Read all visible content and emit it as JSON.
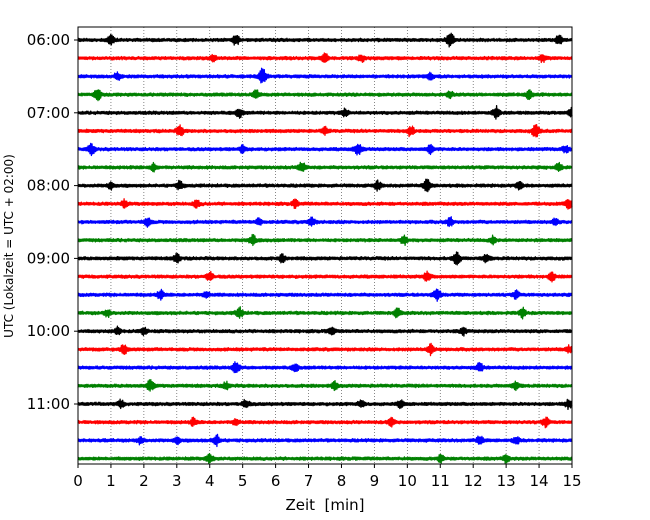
{
  "chart_data": {
    "type": "line",
    "subtype": "helicorder",
    "xlabel": "Zeit  [min]",
    "ylabel": "UTC (Lokalzeit = UTC + 02:00)",
    "xlim": [
      0,
      15
    ],
    "x_ticks": [
      0,
      1,
      2,
      3,
      4,
      5,
      6,
      7,
      8,
      9,
      10,
      11,
      12,
      13,
      14,
      15
    ],
    "x_tick_labels": [
      "0",
      "1",
      "2",
      "3",
      "4",
      "5",
      "6",
      "7",
      "8",
      "9",
      "10",
      "11",
      "12",
      "13",
      "14",
      "15"
    ],
    "grid": "vertical dotted lines at each minute",
    "trace_interval_minutes": 15,
    "num_traces": 24,
    "y_tick_labels": [
      {
        "trace_index": 0,
        "label": "06:00"
      },
      {
        "trace_index": 4,
        "label": "07:00"
      },
      {
        "trace_index": 8,
        "label": "08:00"
      },
      {
        "trace_index": 12,
        "label": "09:00"
      },
      {
        "trace_index": 16,
        "label": "10:00"
      },
      {
        "trace_index": 20,
        "label": "11:00"
      }
    ],
    "color_cycle": [
      "#000000",
      "#ff0000",
      "#0000ff",
      "#008000"
    ],
    "events": [
      [
        [
          1.0,
          0.6
        ],
        [
          4.8,
          0.7
        ],
        [
          11.3,
          0.9
        ],
        [
          14.6,
          0.6
        ]
      ],
      [
        [
          4.1,
          0.5
        ],
        [
          7.5,
          0.6
        ],
        [
          8.6,
          0.5
        ],
        [
          14.1,
          0.5
        ]
      ],
      [
        [
          1.2,
          0.5
        ],
        [
          5.6,
          1.0
        ],
        [
          10.7,
          0.5
        ]
      ],
      [
        [
          0.6,
          0.7
        ],
        [
          5.4,
          0.6
        ],
        [
          11.3,
          0.5
        ],
        [
          13.7,
          0.6
        ]
      ],
      [
        [
          4.9,
          0.6
        ],
        [
          8.1,
          0.5
        ],
        [
          12.7,
          0.8
        ],
        [
          15.0,
          0.7
        ]
      ],
      [
        [
          3.1,
          0.7
        ],
        [
          7.5,
          0.5
        ],
        [
          10.1,
          0.7
        ],
        [
          13.9,
          0.8
        ]
      ],
      [
        [
          0.4,
          0.7
        ],
        [
          5.0,
          0.5
        ],
        [
          8.5,
          0.8
        ],
        [
          10.7,
          0.6
        ],
        [
          14.8,
          0.5
        ]
      ],
      [
        [
          2.3,
          0.5
        ],
        [
          6.8,
          0.7
        ],
        [
          14.6,
          0.5
        ]
      ],
      [
        [
          1.0,
          0.5
        ],
        [
          3.1,
          0.6
        ],
        [
          9.1,
          0.6
        ],
        [
          10.6,
          0.8
        ],
        [
          13.4,
          0.6
        ]
      ],
      [
        [
          1.4,
          0.5
        ],
        [
          3.6,
          0.5
        ],
        [
          6.6,
          0.5
        ],
        [
          14.9,
          0.6
        ]
      ],
      [
        [
          2.1,
          0.6
        ],
        [
          5.5,
          0.5
        ],
        [
          7.1,
          0.6
        ],
        [
          11.3,
          0.6
        ],
        [
          14.5,
          0.5
        ]
      ],
      [
        [
          5.3,
          0.7
        ],
        [
          9.9,
          0.6
        ],
        [
          12.6,
          0.5
        ]
      ],
      [
        [
          3.0,
          0.6
        ],
        [
          6.2,
          0.5
        ],
        [
          11.5,
          0.8
        ],
        [
          12.4,
          0.6
        ]
      ],
      [
        [
          4.0,
          0.6
        ],
        [
          10.6,
          0.6
        ],
        [
          14.4,
          0.6
        ]
      ],
      [
        [
          2.5,
          0.6
        ],
        [
          3.9,
          0.5
        ],
        [
          10.9,
          0.8
        ],
        [
          13.3,
          0.5
        ]
      ],
      [
        [
          0.9,
          0.5
        ],
        [
          4.9,
          0.7
        ],
        [
          9.7,
          0.6
        ],
        [
          13.5,
          0.6
        ]
      ],
      [
        [
          1.2,
          0.5
        ],
        [
          2.0,
          0.5
        ],
        [
          7.7,
          0.5
        ],
        [
          11.7,
          0.5
        ]
      ],
      [
        [
          1.4,
          0.7
        ],
        [
          10.7,
          0.7
        ],
        [
          14.9,
          0.5
        ]
      ],
      [
        [
          4.8,
          0.7
        ],
        [
          6.6,
          0.5
        ],
        [
          12.2,
          0.6
        ]
      ],
      [
        [
          2.2,
          0.7
        ],
        [
          4.5,
          0.5
        ],
        [
          7.8,
          0.5
        ],
        [
          13.3,
          0.6
        ]
      ],
      [
        [
          1.3,
          0.5
        ],
        [
          5.1,
          0.6
        ],
        [
          8.6,
          0.5
        ],
        [
          9.8,
          0.5
        ],
        [
          14.9,
          0.6
        ]
      ],
      [
        [
          3.5,
          0.5
        ],
        [
          4.8,
          0.5
        ],
        [
          9.5,
          0.6
        ],
        [
          14.2,
          0.6
        ]
      ],
      [
        [
          1.9,
          0.5
        ],
        [
          3.0,
          0.5
        ],
        [
          4.2,
          0.7
        ],
        [
          12.2,
          0.6
        ],
        [
          13.3,
          0.5
        ]
      ],
      [
        [
          4.0,
          0.6
        ],
        [
          11.0,
          0.5
        ],
        [
          13.0,
          0.5
        ]
      ]
    ]
  }
}
